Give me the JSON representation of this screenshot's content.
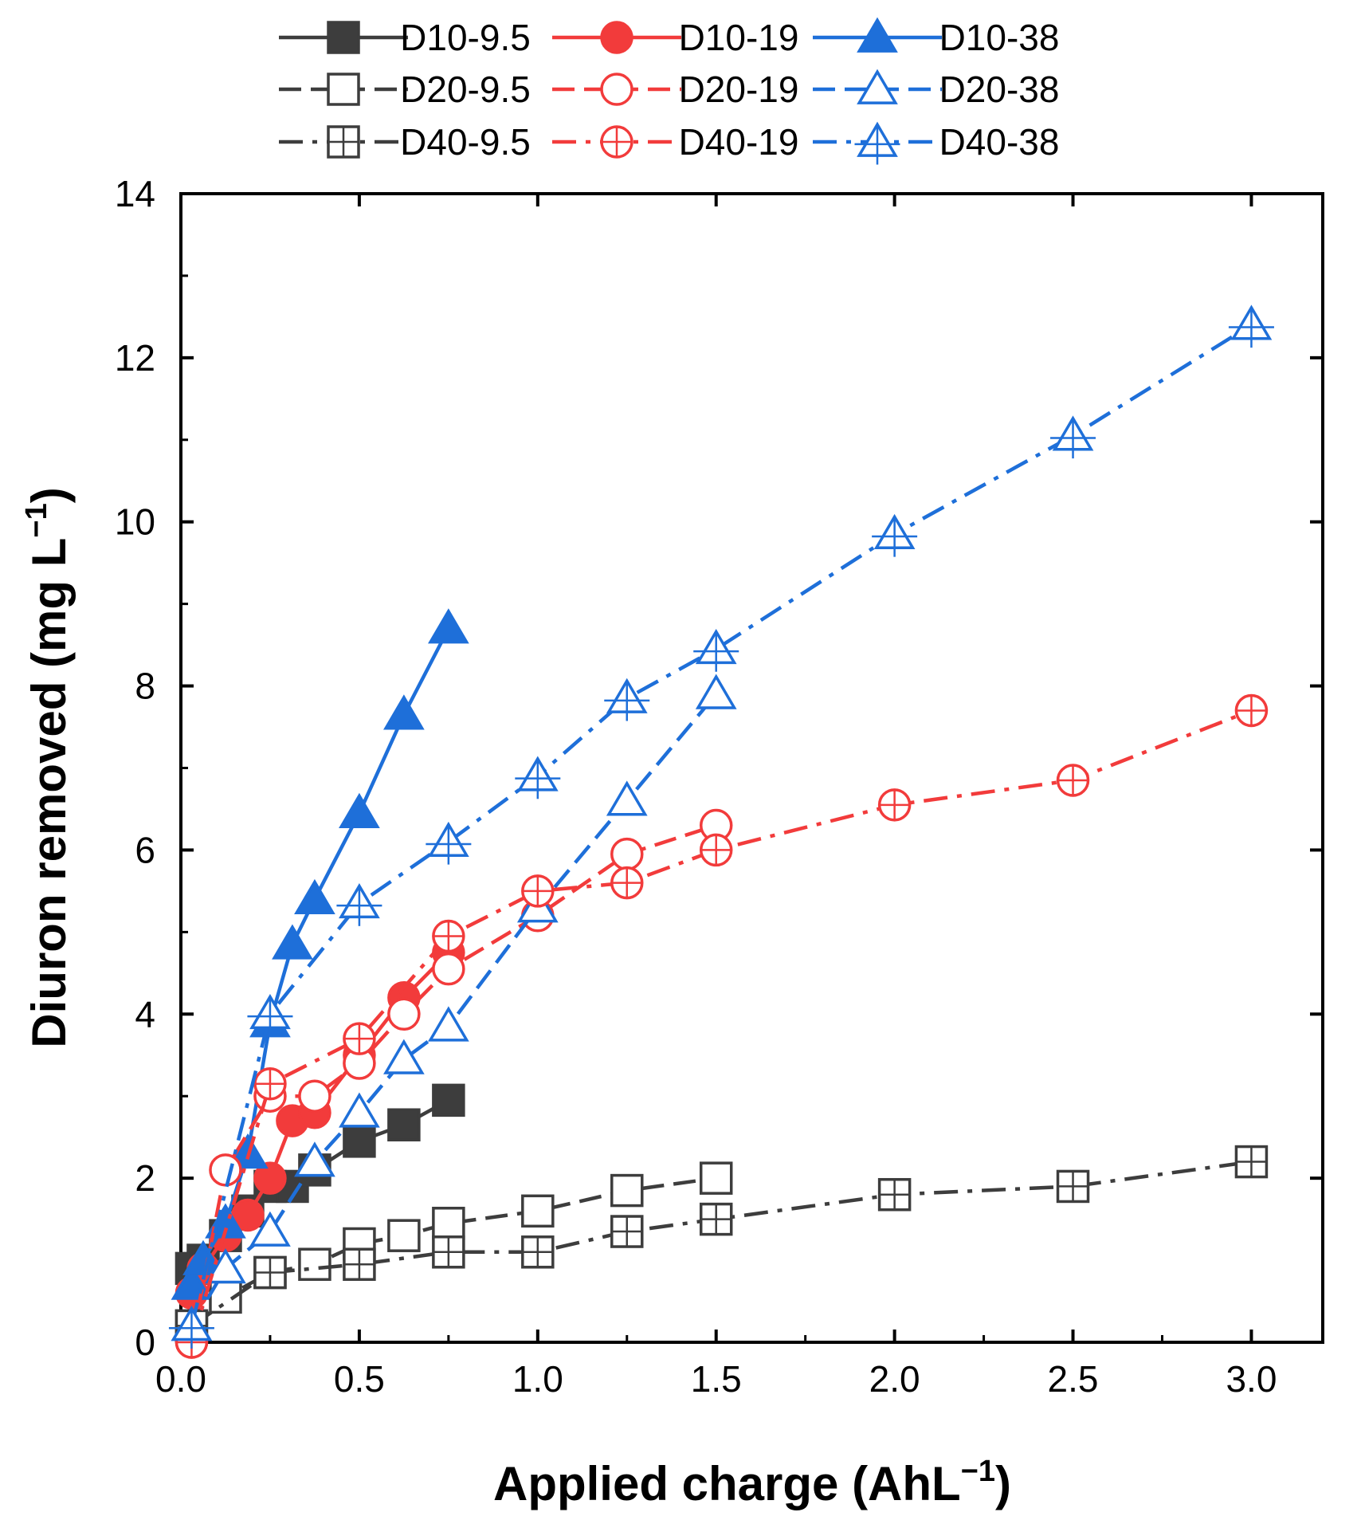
{
  "chart_data": {
    "type": "line",
    "title": "",
    "xlabel": "Applied charge (AhL",
    "xlabel_sup": "−1",
    "xlabel_end": ")",
    "ylabel": "Diuron removed (mg L",
    "ylabel_sup": "−1",
    "ylabel_end": ")",
    "xlim": [
      0.0,
      3.2
    ],
    "ylim": [
      0,
      14
    ],
    "xticks": [
      0.0,
      0.5,
      1.0,
      1.5,
      2.0,
      2.5,
      3.0
    ],
    "xtick_labels": [
      "0.0",
      "0.5",
      "1.0",
      "1.5",
      "2.0",
      "2.5",
      "3.0"
    ],
    "yticks": [
      0,
      2,
      4,
      6,
      8,
      10,
      12,
      14
    ],
    "ytick_labels": [
      "0",
      "2",
      "4",
      "6",
      "8",
      "10",
      "12",
      "14"
    ],
    "grid": false,
    "legend_position": "top",
    "series": [
      {
        "name": "D10-9.5",
        "color": "#3d3d3d",
        "marker": "square",
        "fill": "filled",
        "dash": "solid",
        "x": [
          0.03,
          0.0625,
          0.125,
          0.1875,
          0.25,
          0.3125,
          0.375,
          0.5,
          0.625,
          0.75
        ],
        "y": [
          0.9,
          1.0,
          1.3,
          1.6,
          1.9,
          1.9,
          2.1,
          2.45,
          2.65,
          2.95
        ]
      },
      {
        "name": "D10-19",
        "color": "#f23b3b",
        "marker": "circle",
        "fill": "filled",
        "dash": "solid",
        "x": [
          0.03,
          0.0625,
          0.125,
          0.1875,
          0.25,
          0.3125,
          0.375,
          0.5,
          0.625,
          0.75
        ],
        "y": [
          0.6,
          0.9,
          1.3,
          1.55,
          2.0,
          2.7,
          2.8,
          3.5,
          4.2,
          4.75
        ]
      },
      {
        "name": "D10-38",
        "color": "#1e6fd9",
        "marker": "triangle",
        "fill": "filled",
        "dash": "solid",
        "x": [
          0.03,
          0.0625,
          0.125,
          0.1875,
          0.25,
          0.3125,
          0.375,
          0.5,
          0.625,
          0.75
        ],
        "y": [
          0.7,
          1.0,
          1.45,
          2.3,
          3.9,
          4.85,
          5.4,
          6.45,
          7.65,
          8.7
        ]
      },
      {
        "name": "D20-9.5",
        "color": "#3d3d3d",
        "marker": "square",
        "fill": "open",
        "dash": "dash",
        "x": [
          0.03,
          0.125,
          0.25,
          0.375,
          0.5,
          0.625,
          0.75,
          1.0,
          1.25,
          1.5
        ],
        "y": [
          0.2,
          0.55,
          0.85,
          0.95,
          1.2,
          1.3,
          1.45,
          1.6,
          1.85,
          2.0
        ]
      },
      {
        "name": "D20-19",
        "color": "#f23b3b",
        "marker": "circle",
        "fill": "open",
        "dash": "dash",
        "x": [
          0.03,
          0.125,
          0.25,
          0.375,
          0.5,
          0.625,
          0.75,
          1.0,
          1.25,
          1.5
        ],
        "y": [
          0.0,
          2.1,
          3.0,
          3.0,
          3.4,
          4.0,
          4.55,
          5.2,
          5.95,
          6.3
        ]
      },
      {
        "name": "D20-38",
        "color": "#1e6fd9",
        "marker": "triangle",
        "fill": "open",
        "dash": "dash",
        "x": [
          0.03,
          0.125,
          0.25,
          0.375,
          0.5,
          0.625,
          0.75,
          1.0,
          1.25,
          1.5
        ],
        "y": [
          0.2,
          0.9,
          1.35,
          2.2,
          2.8,
          3.45,
          3.85,
          5.3,
          6.6,
          7.9
        ]
      },
      {
        "name": "D40-9.5",
        "color": "#3d3d3d",
        "marker": "square-cross",
        "fill": "open",
        "dash": "dashdot",
        "x": [
          0.03,
          0.25,
          0.5,
          0.75,
          1.0,
          1.25,
          1.5,
          2.0,
          2.5,
          3.0
        ],
        "y": [
          0.2,
          0.85,
          0.95,
          1.1,
          1.1,
          1.35,
          1.5,
          1.8,
          1.9,
          2.2
        ]
      },
      {
        "name": "D40-19",
        "color": "#f23b3b",
        "marker": "circle-cross",
        "fill": "open",
        "dash": "dashdot",
        "x": [
          0.03,
          0.25,
          0.5,
          0.75,
          1.0,
          1.25,
          1.5,
          2.0,
          2.5,
          3.0
        ],
        "y": [
          0.0,
          3.15,
          3.7,
          4.95,
          5.5,
          5.6,
          6.0,
          6.55,
          6.85,
          7.7
        ]
      },
      {
        "name": "D40-38",
        "color": "#1e6fd9",
        "marker": "triangle-cross",
        "fill": "open",
        "dash": "dashdot",
        "x": [
          0.03,
          0.25,
          0.5,
          0.75,
          1.0,
          1.25,
          1.5,
          2.0,
          2.5,
          3.0
        ],
        "y": [
          0.2,
          4.0,
          5.35,
          6.1,
          6.9,
          7.85,
          8.45,
          9.85,
          11.05,
          12.4
        ]
      }
    ]
  }
}
